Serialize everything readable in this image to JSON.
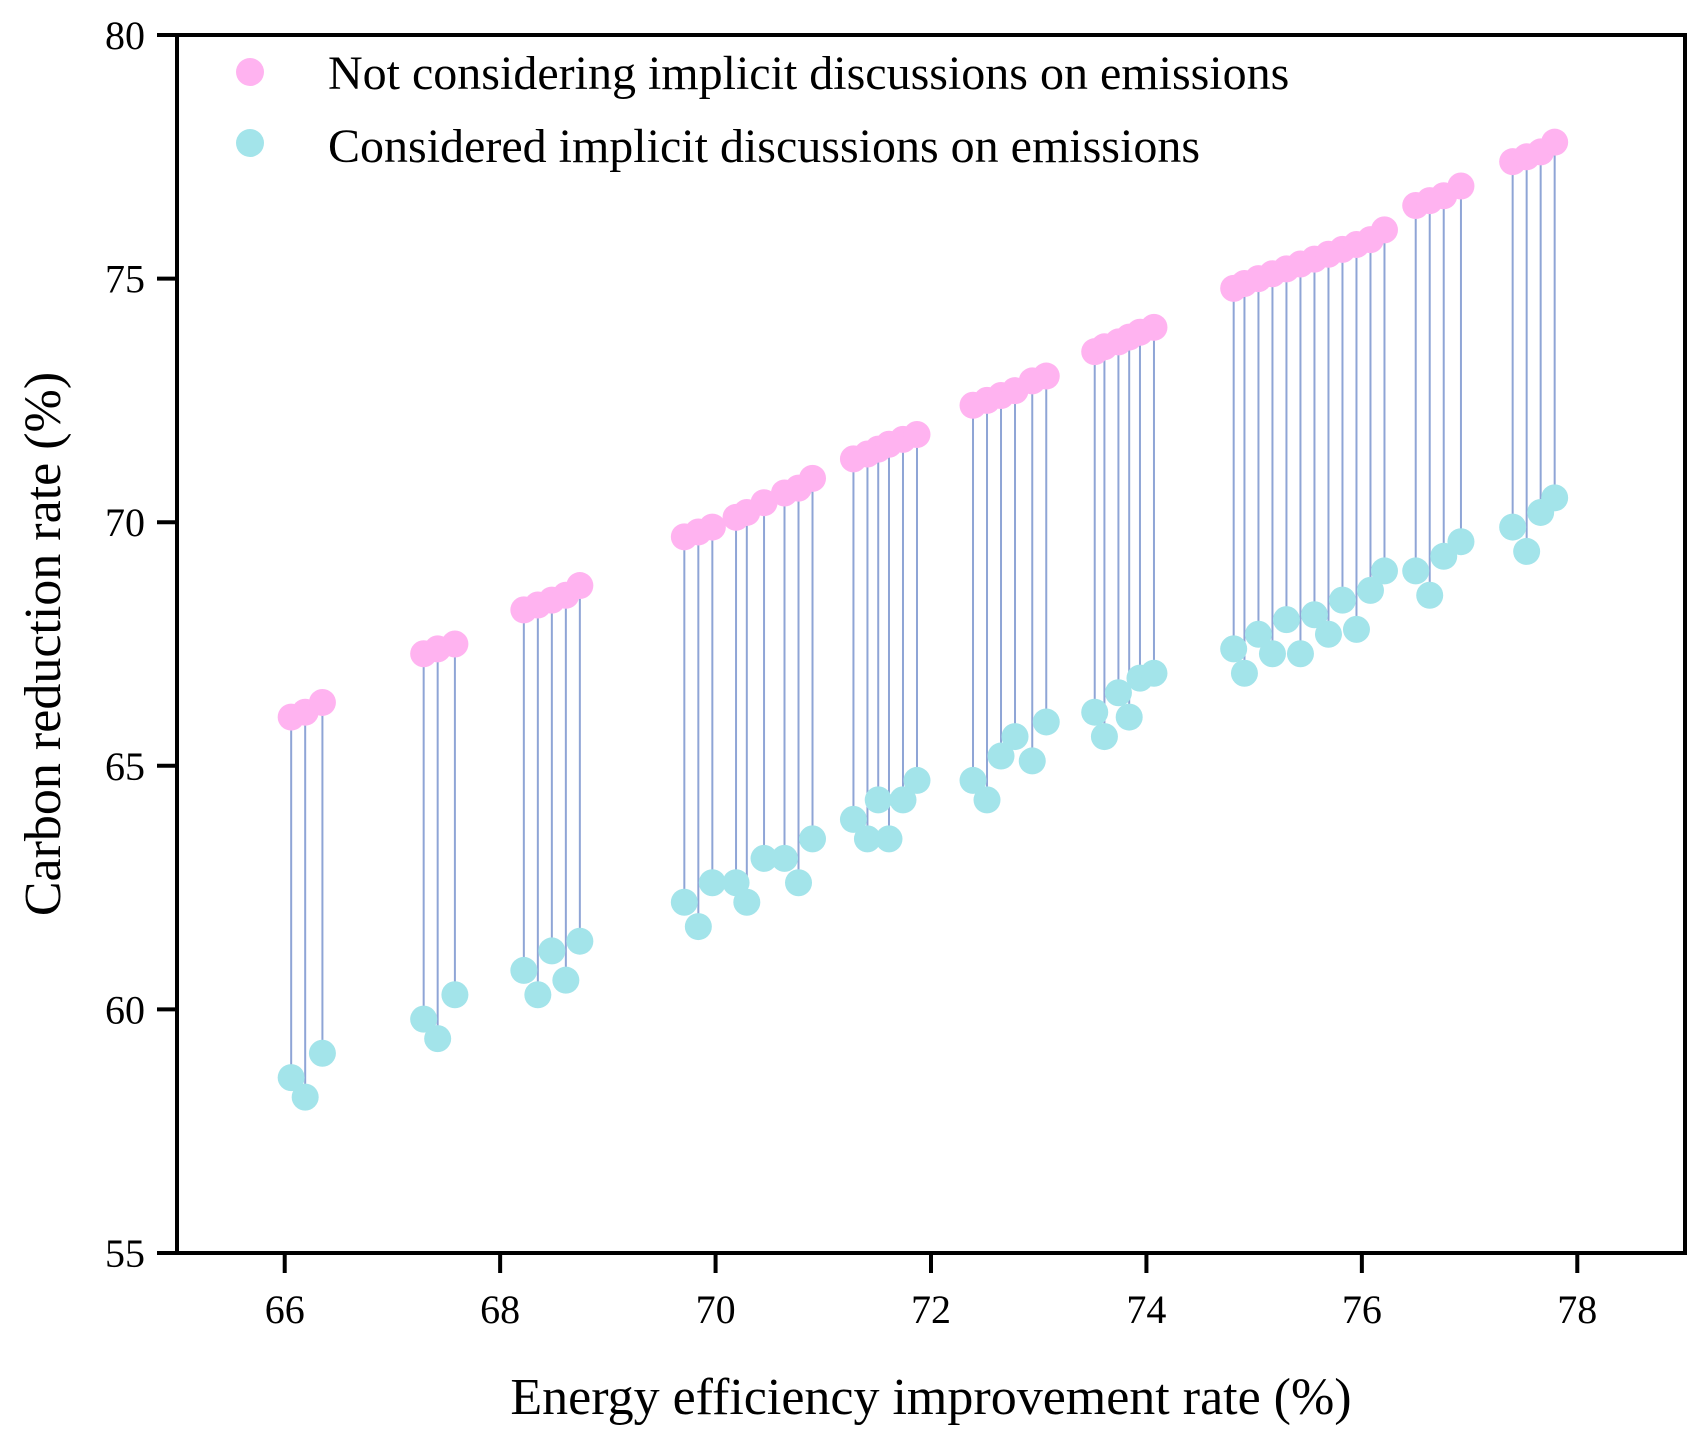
{
  "chart_data": {
    "type": "scatter",
    "title": "",
    "xlabel": "Energy efficiency improvement rate (%)",
    "ylabel": "Carbon reduction rate (%)",
    "xlim": [
      65,
      79
    ],
    "ylim": [
      55,
      80
    ],
    "xticks": [
      66,
      68,
      70,
      72,
      74,
      76,
      78
    ],
    "yticks": [
      55,
      60,
      65,
      70,
      75,
      80
    ],
    "grid": false,
    "legend_position": "top-left",
    "colors": {
      "not_considering": "#ffb3f0",
      "considered": "#a3e4ea",
      "connector": "#8fa5d6"
    },
    "series": [
      {
        "name": "Not considering implicit discussions on emissions",
        "x": [
          66.06,
          66.19,
          66.35,
          67.29,
          67.42,
          67.58,
          68.22,
          68.35,
          68.48,
          68.61,
          68.74,
          69.71,
          69.84,
          69.97,
          70.19,
          70.29,
          70.45,
          70.64,
          70.77,
          70.9,
          71.28,
          71.41,
          71.51,
          71.61,
          71.74,
          71.87,
          72.39,
          72.52,
          72.65,
          72.78,
          72.94,
          73.07,
          73.52,
          73.61,
          73.74,
          73.84,
          73.94,
          74.07,
          74.81,
          74.91,
          75.04,
          75.17,
          75.3,
          75.43,
          75.56,
          75.69,
          75.82,
          75.95,
          76.08,
          76.21,
          76.5,
          76.63,
          76.76,
          76.92,
          77.4,
          77.53,
          77.66,
          77.79
        ],
        "y": [
          66.0,
          66.1,
          66.3,
          67.3,
          67.4,
          67.5,
          68.2,
          68.3,
          68.4,
          68.5,
          68.7,
          69.7,
          69.8,
          69.9,
          70.1,
          70.2,
          70.4,
          70.6,
          70.7,
          70.9,
          71.3,
          71.4,
          71.5,
          71.6,
          71.7,
          71.8,
          72.4,
          72.5,
          72.6,
          72.7,
          72.9,
          73.0,
          73.5,
          73.6,
          73.7,
          73.8,
          73.9,
          74.0,
          74.8,
          74.9,
          75.0,
          75.1,
          75.2,
          75.3,
          75.4,
          75.5,
          75.6,
          75.7,
          75.8,
          76.0,
          76.5,
          76.6,
          76.7,
          76.9,
          77.4,
          77.5,
          77.6,
          77.8
        ]
      },
      {
        "name": "Considered implicit discussions on emissions",
        "x": [
          66.06,
          66.19,
          66.35,
          67.29,
          67.42,
          67.58,
          68.22,
          68.35,
          68.48,
          68.61,
          68.74,
          69.71,
          69.84,
          69.97,
          70.19,
          70.29,
          70.45,
          70.64,
          70.77,
          70.9,
          71.28,
          71.41,
          71.51,
          71.61,
          71.74,
          71.87,
          72.39,
          72.52,
          72.65,
          72.78,
          72.94,
          73.07,
          73.52,
          73.61,
          73.74,
          73.84,
          73.94,
          74.07,
          74.81,
          74.91,
          75.04,
          75.17,
          75.3,
          75.43,
          75.56,
          75.69,
          75.82,
          75.95,
          76.08,
          76.21,
          76.5,
          76.63,
          76.76,
          76.92,
          77.4,
          77.53,
          77.66,
          77.79
        ],
        "y": [
          58.6,
          58.2,
          59.1,
          59.8,
          59.4,
          60.3,
          60.8,
          60.3,
          61.2,
          60.6,
          61.4,
          62.2,
          61.7,
          62.6,
          62.6,
          62.2,
          63.1,
          63.1,
          62.6,
          63.5,
          63.9,
          63.5,
          64.3,
          63.5,
          64.3,
          64.7,
          64.7,
          64.3,
          65.2,
          65.6,
          65.1,
          65.9,
          66.1,
          65.6,
          66.5,
          66.0,
          66.8,
          66.9,
          67.4,
          66.9,
          67.7,
          67.3,
          68.0,
          67.3,
          68.1,
          67.7,
          68.4,
          67.8,
          68.6,
          69.0,
          69.0,
          68.5,
          69.3,
          69.6,
          69.9,
          69.4,
          70.2,
          70.5
        ]
      }
    ]
  }
}
